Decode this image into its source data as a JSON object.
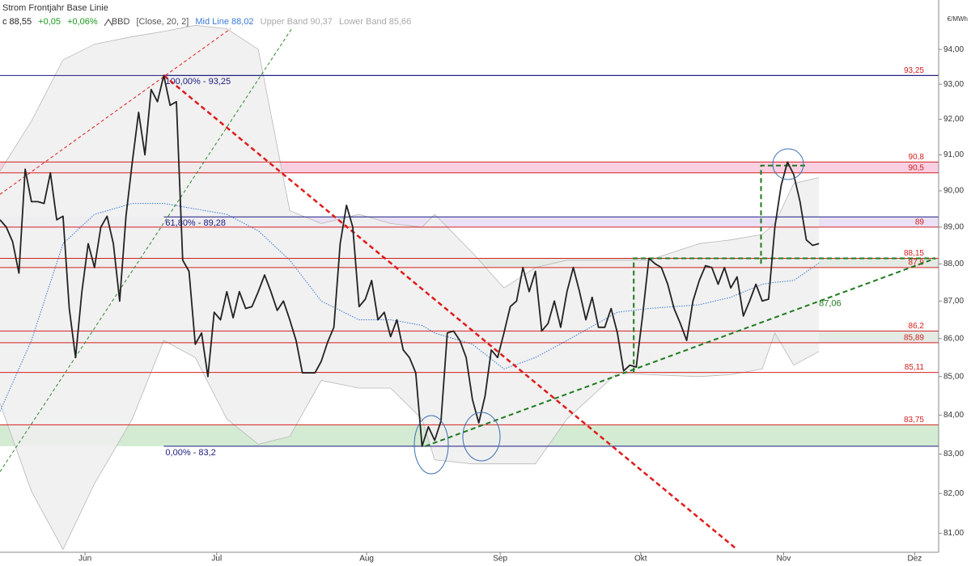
{
  "chart_data": {
    "type": "line",
    "title": "Strom Frontjahr Base Linie",
    "legend": [
      "c 88,55",
      "+0,05",
      "+0,06%",
      "BBD",
      "[Close, 20, 2]",
      "Mid Line 88,02",
      "Upper Band 90,37",
      "Lower Band 85,66"
    ],
    "y_unit": "€/MWh",
    "log": true,
    "color": "#222222",
    "x": [
      0,
      1,
      2,
      3,
      4,
      5,
      6,
      7,
      8,
      9,
      10,
      11,
      12,
      13,
      14,
      15,
      16,
      17,
      18,
      19,
      20,
      21,
      22,
      23,
      24,
      25,
      26,
      27,
      28,
      29,
      30,
      31,
      32,
      33,
      34,
      35,
      36,
      37,
      38,
      39,
      40,
      41,
      42,
      43,
      44,
      45,
      46,
      47,
      48,
      49,
      50,
      51,
      52,
      53,
      54,
      55,
      56,
      57,
      58,
      59,
      60,
      61,
      62,
      63,
      64,
      65,
      66,
      67,
      68,
      69,
      70,
      71,
      72,
      73,
      74,
      75,
      76,
      77,
      78,
      79,
      80,
      81,
      82,
      83,
      84,
      85,
      86,
      87,
      88,
      89,
      90,
      91,
      92,
      93,
      94,
      95,
      96,
      97,
      98,
      99,
      100,
      101,
      102,
      103,
      104,
      105,
      106,
      107,
      108,
      109,
      110,
      111,
      112,
      113,
      114,
      115,
      116,
      117,
      118,
      119,
      120,
      121,
      122,
      123,
      124,
      125,
      126,
      127,
      128,
      129,
      130
    ],
    "values": [
      89.2,
      89.0,
      88.6,
      87.75,
      90.6,
      89.7,
      89.7,
      89.65,
      90.5,
      89.2,
      89.3,
      86.8,
      85.5,
      87.25,
      88.55,
      87.9,
      89.0,
      89.3,
      88.55,
      87.0,
      89.3,
      90.8,
      92.2,
      91.0,
      92.85,
      92.5,
      93.25,
      92.4,
      92.5,
      88.1,
      87.8,
      85.85,
      86.15,
      85.0,
      86.7,
      86.5,
      87.25,
      86.55,
      87.25,
      86.8,
      86.85,
      87.25,
      87.7,
      87.25,
      86.75,
      87.0,
      86.5,
      85.95,
      85.1,
      85.1,
      85.1,
      85.4,
      85.9,
      86.3,
      88.55,
      89.6,
      89.0,
      86.85,
      87.05,
      87.55,
      86.5,
      86.7,
      86.05,
      86.5,
      85.7,
      85.5,
      85.1,
      83.2,
      83.7,
      83.35,
      83.85,
      86.15,
      86.2,
      85.95,
      85.5,
      84.4,
      83.8,
      84.5,
      85.7,
      85.5,
      86.15,
      86.85,
      87.0,
      87.9,
      87.25,
      87.8,
      86.2,
      86.4,
      87.0,
      86.3,
      87.25,
      87.9,
      87.25,
      86.5,
      87.1,
      86.3,
      86.3,
      86.8,
      86.15,
      85.15,
      85.3,
      85.25,
      86.6,
      88.15,
      88.0,
      87.9,
      87.45,
      86.8,
      86.4,
      85.95,
      87.0,
      87.55,
      87.95,
      87.9,
      87.45,
      87.9,
      87.35,
      87.65,
      86.6,
      87.0,
      87.45,
      87.0,
      87.05,
      89.0,
      90.15,
      90.8,
      90.45,
      89.7,
      88.65,
      88.5,
      88.55
    ],
    "bands": {
      "x": [
        0,
        5,
        10,
        15,
        21,
        26,
        31,
        36,
        41,
        46,
        51,
        57,
        62,
        67,
        69,
        75,
        80,
        85,
        90,
        98,
        103,
        111,
        116,
        121,
        123,
        126,
        130
      ],
      "upper": [
        90.55,
        91.95,
        93.7,
        94.15,
        94.37,
        94.52,
        94.7,
        94.6,
        94.0,
        89.45,
        89.1,
        89.35,
        89.1,
        89.0,
        89.35,
        88.3,
        87.35,
        87.9,
        88.1,
        88.1,
        88.1,
        88.55,
        88.65,
        88.8,
        89.1,
        90.2,
        90.37
      ],
      "lower": [
        84.3,
        82.05,
        80.6,
        82.25,
        83.9,
        85.95,
        85.5,
        83.9,
        83.25,
        83.45,
        84.9,
        84.7,
        84.7,
        83.9,
        82.85,
        82.75,
        82.75,
        82.75,
        83.9,
        85.1,
        85.05,
        85.0,
        85.05,
        85.2,
        86.15,
        85.3,
        85.66
      ],
      "mid": [
        84.1,
        85.95,
        88.55,
        89.35,
        89.65,
        89.65,
        89.5,
        89.35,
        88.9,
        88.1,
        87.0,
        86.5,
        86.5,
        86.35,
        86.15,
        85.85,
        85.2,
        85.5,
        85.95,
        86.7,
        86.8,
        86.9,
        87.1,
        87.45,
        87.5,
        87.55,
        88.02
      ],
      "fill": "#eeeeee",
      "edge": "#b8b8b8",
      "mid_color": "#3a7bd5"
    },
    "zones": [
      {
        "from": 90.5,
        "to": 90.8,
        "color": "#f8c8dd"
      },
      {
        "from": 89,
        "to": 89.28,
        "color": "#e8dcf5"
      },
      {
        "from": 87.9,
        "to": 88.15,
        "color": "#dfe6df"
      },
      {
        "from": 85.89,
        "to": 86.2,
        "color": "#dfe6df"
      },
      {
        "from": 83.2,
        "to": 83.75,
        "color": "#cbe7cb"
      }
    ],
    "levels": [
      {
        "value": 93.25,
        "label": "93,25",
        "color": "#1a1a80"
      },
      {
        "value": 90.8,
        "label": "90,8",
        "color": "#d42020"
      },
      {
        "value": 90.5,
        "label": "90,5",
        "color": "#d42020"
      },
      {
        "value": 89,
        "label": "89",
        "color": "#d42020"
      },
      {
        "value": 88.15,
        "label": "88,15",
        "color": "#d42020"
      },
      {
        "value": 87.9,
        "label": "87,9",
        "color": "#d42020"
      },
      {
        "value": 86.2,
        "label": "86,2",
        "color": "#d42020"
      },
      {
        "value": 85.89,
        "label": "85,89",
        "color": "#d42020"
      },
      {
        "value": 85.11,
        "label": "85,11",
        "color": "#d42020"
      },
      {
        "value": 83.75,
        "label": "83,75",
        "color": "#d42020"
      }
    ],
    "fib": [
      {
        "x": 26,
        "value": 93.25,
        "label": "100,00% - 93,25"
      },
      {
        "x": 26,
        "value": 89.28,
        "label": "61,80% - 89,28"
      },
      {
        "x": 26,
        "value": 83.2,
        "label": "0,00% - 83,2"
      }
    ],
    "fib_color": "#1a1a80",
    "drawings": [
      {
        "x": [
          26,
          117
        ],
        "y": [
          93.25,
          80.6
        ],
        "color": "#e01b1b",
        "width": 2.5,
        "dash": true
      },
      {
        "x": [
          0,
          36.6
        ],
        "y": [
          89.9,
          94.6
        ],
        "color": "#e01b1b",
        "width": 1,
        "dash": true
      },
      {
        "x": [
          0,
          46.3
        ],
        "y": [
          82.55,
          94.6
        ],
        "color": "#2e8b2e",
        "width": 1,
        "dash": true
      },
      {
        "x": [
          67.5,
          148.5
        ],
        "y": [
          83.2,
          88.15
        ],
        "color": "#1e7a1e",
        "width": 2,
        "dash": true
      },
      {
        "x": [
          100.6,
          100.6,
          148.5
        ],
        "y": [
          85.11,
          88.15,
          88.15
        ],
        "color": "#1e7a1e",
        "width": 2,
        "dash": true
      },
      {
        "x": [
          120.8,
          120.8,
          128
        ],
        "y": [
          88.0,
          90.7,
          90.7
        ],
        "color": "#1e7a1e",
        "width": 2,
        "dash": true
      }
    ],
    "trend_label": {
      "x": 130,
      "value": 87.06,
      "label": "87,06",
      "color": "#1e7a1e"
    },
    "xlim": [
      0,
      149
    ],
    "xticks": [
      {
        "value": 13.5,
        "label": "Jun"
      },
      {
        "value": 34.4,
        "label": "Jul"
      },
      {
        "value": 58.2,
        "label": "Aug"
      },
      {
        "value": 79.4,
        "label": "Sep"
      },
      {
        "value": 101.7,
        "label": "Okt"
      },
      {
        "value": 124.4,
        "label": "Nov"
      },
      {
        "value": 145.2,
        "label": "Dez"
      }
    ],
    "ylim": [
      80.53,
      95.44
    ],
    "yticks": [
      {
        "value": 81,
        "label": "81,00"
      },
      {
        "value": 82,
        "label": "82,00"
      },
      {
        "value": 83,
        "label": "83,00"
      },
      {
        "value": 84,
        "label": "84,00"
      },
      {
        "value": 85,
        "label": "85,00"
      },
      {
        "value": 86,
        "label": "86,00"
      },
      {
        "value": 87,
        "label": "87,00"
      },
      {
        "value": 88,
        "label": "88,00"
      },
      {
        "value": 89,
        "label": "89,00"
      },
      {
        "value": 90,
        "label": "90,00"
      },
      {
        "value": 91,
        "label": "91,00"
      },
      {
        "value": 92,
        "label": "92,00"
      },
      {
        "value": 93,
        "label": "93,00"
      },
      {
        "value": 94,
        "label": "94,00"
      }
    ]
  }
}
